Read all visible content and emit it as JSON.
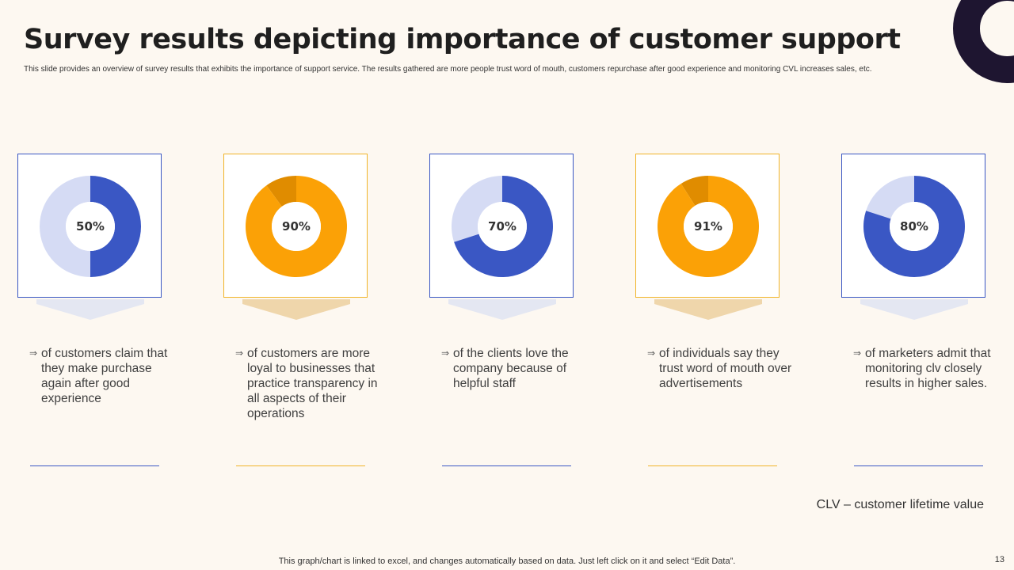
{
  "slide": {
    "title": "Survey results depicting importance of customer support",
    "subtitle": "This slide provides an overview of survey results that exhibits the importance of support service. The results gathered are more people trust word of mouth, customers repurchase after good experience and monitoring CVL increases sales, etc.",
    "clv_note": "CLV – customer lifetime value",
    "footer": "This graph/chart is linked to excel, and changes automatically based on data. Just left click on it and select “Edit Data”.",
    "page_number": "13"
  },
  "colors": {
    "blue": "#3a57c4",
    "blue_light": "#d5dbf4",
    "orange": "#fba106",
    "orange_dark": "#e08c00",
    "blue_border": "#3a57c4",
    "orange_border": "#f0b429",
    "blue_pointer": "#e4e7f2",
    "orange_pointer": "#efd6ab",
    "dark_deco": "#1e1530"
  },
  "chart_data": [
    {
      "type": "pie",
      "label": "50%",
      "values": [
        50,
        50
      ],
      "text": "of customers claim that they make purchase again after good experience",
      "theme": "blue"
    },
    {
      "type": "pie",
      "label": "90%",
      "values": [
        90,
        10
      ],
      "text": "of customers are more loyal to businesses that practice transparency in all aspects of their operations",
      "theme": "orange"
    },
    {
      "type": "pie",
      "label": "70%",
      "values": [
        70,
        30
      ],
      "text": "of the clients love the company because of helpful staff",
      "theme": "blue"
    },
    {
      "type": "pie",
      "label": "91%",
      "values": [
        91,
        9
      ],
      "text": "of individuals say they trust word of mouth over advertisements",
      "theme": "orange"
    },
    {
      "type": "pie",
      "label": "80%",
      "values": [
        80,
        20
      ],
      "text": "of marketers admit that monitoring clv closely results in higher sales.",
      "theme": "blue"
    }
  ]
}
